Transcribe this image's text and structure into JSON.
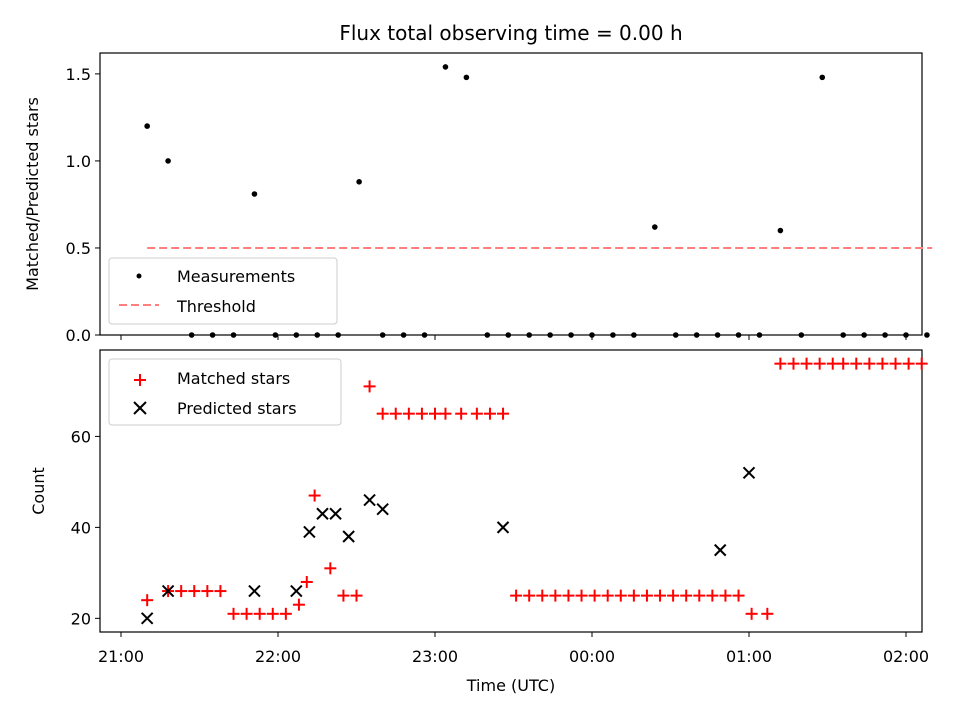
{
  "title": "Flux total observing time = 0.00 h",
  "xlabel": "Time (UTC)",
  "chart_data": [
    {
      "type": "scatter",
      "ylabel": "Matched/Predicted stars",
      "ylim": [
        0,
        1.62
      ],
      "yticks": [
        "0.0",
        "0.5",
        "1.0",
        "1.5"
      ],
      "ytick_values": [
        0,
        0.5,
        1.0,
        1.5
      ],
      "xlim": [
        0,
        310
      ],
      "legend_position": "lower-left",
      "series": [
        {
          "name": "Measurements",
          "color": "#000000",
          "marker": "dot",
          "x": [
            10,
            18,
            27,
            35,
            43,
            51,
            59,
            67,
            75,
            83,
            91,
            100,
            108,
            116,
            124,
            132,
            140,
            148,
            156,
            164,
            172,
            180,
            188,
            196,
            204,
            212,
            220,
            228,
            236,
            244,
            252,
            260,
            268,
            276,
            284,
            292,
            300,
            308
          ],
          "y": [
            1.2,
            1.0,
            0.0,
            0.0,
            0.0,
            0.81,
            0.0,
            0.0,
            0.0,
            0.0,
            0.88,
            0.0,
            0.0,
            0.0,
            1.54,
            1.48,
            0.0,
            0.0,
            0.0,
            0.0,
            0.0,
            0.0,
            0.0,
            0.0,
            0.62,
            0.0,
            0.0,
            0.0,
            0.0,
            0.0,
            0.6,
            0.0,
            1.48,
            0.0,
            0.0,
            0.0,
            0.0,
            0.0
          ]
        },
        {
          "name": "Threshold",
          "color": "#ff7f7f",
          "style": "dashed",
          "x": [
            10,
            310
          ],
          "y": [
            0.5,
            0.5
          ]
        }
      ]
    },
    {
      "type": "scatter",
      "ylabel": "Count",
      "ylim": [
        17,
        79
      ],
      "yticks": [
        "20",
        "40",
        "60"
      ],
      "ytick_values": [
        20,
        40,
        60
      ],
      "xlim": [
        0,
        310
      ],
      "xticks": [
        "21:00",
        "22:00",
        "23:00",
        "00:00",
        "01:00",
        "02:00"
      ],
      "xtick_values": [
        0,
        60,
        120,
        180,
        240,
        300
      ],
      "legend_position": "upper-left",
      "series": [
        {
          "name": "Matched stars",
          "color": "#ff0000",
          "marker": "plus",
          "x": [
            10,
            18,
            23,
            28,
            33,
            38,
            43,
            48,
            53,
            58,
            63,
            68,
            71,
            74,
            80,
            85,
            90,
            95,
            100,
            105,
            110,
            115,
            120,
            124,
            130,
            136,
            141,
            146,
            151,
            156,
            161,
            166,
            171,
            176,
            181,
            186,
            191,
            196,
            201,
            206,
            211,
            216,
            221,
            226,
            231,
            236,
            241,
            247,
            252,
            257,
            262,
            267,
            272,
            276,
            281,
            286,
            291,
            296,
            301,
            306
          ],
          "y": [
            24,
            26,
            26,
            26,
            26,
            26,
            21,
            21,
            21,
            21,
            21,
            23,
            28,
            47,
            31,
            25,
            25,
            71,
            65,
            65,
            65,
            65,
            65,
            65,
            65,
            65,
            65,
            65,
            25,
            25,
            25,
            25,
            25,
            25,
            25,
            25,
            25,
            25,
            25,
            25,
            25,
            25,
            25,
            25,
            25,
            25,
            21,
            21,
            76,
            76,
            76,
            76,
            76,
            76,
            76,
            76,
            76,
            76,
            76,
            76
          ]
        },
        {
          "name": "Predicted stars",
          "color": "#000000",
          "marker": "x",
          "x": [
            10,
            18,
            51,
            67,
            72,
            77,
            82,
            87,
            95,
            100,
            146,
            229,
            240
          ],
          "y": [
            20,
            26,
            26,
            26,
            39,
            43,
            43,
            38,
            46,
            44,
            40,
            35,
            52
          ]
        }
      ]
    }
  ]
}
